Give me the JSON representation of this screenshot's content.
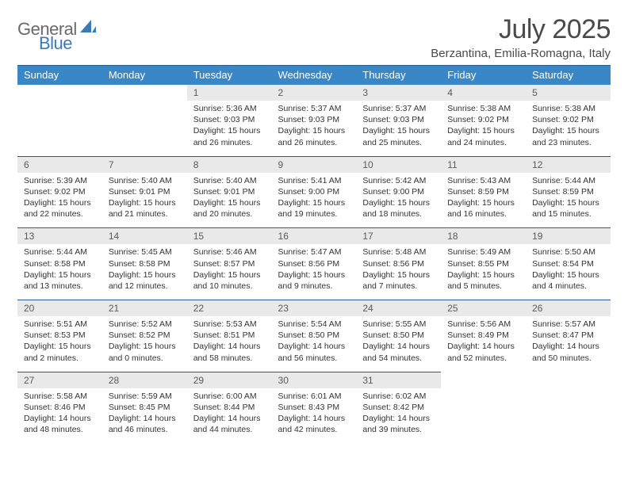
{
  "brand": {
    "text_a": "General",
    "text_b": "Blue"
  },
  "header": {
    "month": "July 2025",
    "location": "Berzantina, Emilia-Romagna, Italy"
  },
  "colors": {
    "header_bg": "#3a87c8",
    "header_fg": "#ffffff",
    "daynum_bg": "#e9e9e9",
    "rule": "#2b5b8c",
    "accent": "#3a7ab8"
  },
  "weekdays": [
    "Sunday",
    "Monday",
    "Tuesday",
    "Wednesday",
    "Thursday",
    "Friday",
    "Saturday"
  ],
  "weeks": [
    {
      "nums": [
        "",
        "",
        "1",
        "2",
        "3",
        "4",
        "5"
      ],
      "cells": [
        null,
        null,
        {
          "sunrise": "Sunrise: 5:36 AM",
          "sunset": "Sunset: 9:03 PM",
          "daylight": "Daylight: 15 hours and 26 minutes."
        },
        {
          "sunrise": "Sunrise: 5:37 AM",
          "sunset": "Sunset: 9:03 PM",
          "daylight": "Daylight: 15 hours and 26 minutes."
        },
        {
          "sunrise": "Sunrise: 5:37 AM",
          "sunset": "Sunset: 9:03 PM",
          "daylight": "Daylight: 15 hours and 25 minutes."
        },
        {
          "sunrise": "Sunrise: 5:38 AM",
          "sunset": "Sunset: 9:02 PM",
          "daylight": "Daylight: 15 hours and 24 minutes."
        },
        {
          "sunrise": "Sunrise: 5:38 AM",
          "sunset": "Sunset: 9:02 PM",
          "daylight": "Daylight: 15 hours and 23 minutes."
        }
      ]
    },
    {
      "nums": [
        "6",
        "7",
        "8",
        "9",
        "10",
        "11",
        "12"
      ],
      "cells": [
        {
          "sunrise": "Sunrise: 5:39 AM",
          "sunset": "Sunset: 9:02 PM",
          "daylight": "Daylight: 15 hours and 22 minutes."
        },
        {
          "sunrise": "Sunrise: 5:40 AM",
          "sunset": "Sunset: 9:01 PM",
          "daylight": "Daylight: 15 hours and 21 minutes."
        },
        {
          "sunrise": "Sunrise: 5:40 AM",
          "sunset": "Sunset: 9:01 PM",
          "daylight": "Daylight: 15 hours and 20 minutes."
        },
        {
          "sunrise": "Sunrise: 5:41 AM",
          "sunset": "Sunset: 9:00 PM",
          "daylight": "Daylight: 15 hours and 19 minutes."
        },
        {
          "sunrise": "Sunrise: 5:42 AM",
          "sunset": "Sunset: 9:00 PM",
          "daylight": "Daylight: 15 hours and 18 minutes."
        },
        {
          "sunrise": "Sunrise: 5:43 AM",
          "sunset": "Sunset: 8:59 PM",
          "daylight": "Daylight: 15 hours and 16 minutes."
        },
        {
          "sunrise": "Sunrise: 5:44 AM",
          "sunset": "Sunset: 8:59 PM",
          "daylight": "Daylight: 15 hours and 15 minutes."
        }
      ]
    },
    {
      "nums": [
        "13",
        "14",
        "15",
        "16",
        "17",
        "18",
        "19"
      ],
      "cells": [
        {
          "sunrise": "Sunrise: 5:44 AM",
          "sunset": "Sunset: 8:58 PM",
          "daylight": "Daylight: 15 hours and 13 minutes."
        },
        {
          "sunrise": "Sunrise: 5:45 AM",
          "sunset": "Sunset: 8:58 PM",
          "daylight": "Daylight: 15 hours and 12 minutes."
        },
        {
          "sunrise": "Sunrise: 5:46 AM",
          "sunset": "Sunset: 8:57 PM",
          "daylight": "Daylight: 15 hours and 10 minutes."
        },
        {
          "sunrise": "Sunrise: 5:47 AM",
          "sunset": "Sunset: 8:56 PM",
          "daylight": "Daylight: 15 hours and 9 minutes."
        },
        {
          "sunrise": "Sunrise: 5:48 AM",
          "sunset": "Sunset: 8:56 PM",
          "daylight": "Daylight: 15 hours and 7 minutes."
        },
        {
          "sunrise": "Sunrise: 5:49 AM",
          "sunset": "Sunset: 8:55 PM",
          "daylight": "Daylight: 15 hours and 5 minutes."
        },
        {
          "sunrise": "Sunrise: 5:50 AM",
          "sunset": "Sunset: 8:54 PM",
          "daylight": "Daylight: 15 hours and 4 minutes."
        }
      ]
    },
    {
      "nums": [
        "20",
        "21",
        "22",
        "23",
        "24",
        "25",
        "26"
      ],
      "cells": [
        {
          "sunrise": "Sunrise: 5:51 AM",
          "sunset": "Sunset: 8:53 PM",
          "daylight": "Daylight: 15 hours and 2 minutes."
        },
        {
          "sunrise": "Sunrise: 5:52 AM",
          "sunset": "Sunset: 8:52 PM",
          "daylight": "Daylight: 15 hours and 0 minutes."
        },
        {
          "sunrise": "Sunrise: 5:53 AM",
          "sunset": "Sunset: 8:51 PM",
          "daylight": "Daylight: 14 hours and 58 minutes."
        },
        {
          "sunrise": "Sunrise: 5:54 AM",
          "sunset": "Sunset: 8:50 PM",
          "daylight": "Daylight: 14 hours and 56 minutes."
        },
        {
          "sunrise": "Sunrise: 5:55 AM",
          "sunset": "Sunset: 8:50 PM",
          "daylight": "Daylight: 14 hours and 54 minutes."
        },
        {
          "sunrise": "Sunrise: 5:56 AM",
          "sunset": "Sunset: 8:49 PM",
          "daylight": "Daylight: 14 hours and 52 minutes."
        },
        {
          "sunrise": "Sunrise: 5:57 AM",
          "sunset": "Sunset: 8:47 PM",
          "daylight": "Daylight: 14 hours and 50 minutes."
        }
      ]
    },
    {
      "nums": [
        "27",
        "28",
        "29",
        "30",
        "31",
        "",
        ""
      ],
      "cells": [
        {
          "sunrise": "Sunrise: 5:58 AM",
          "sunset": "Sunset: 8:46 PM",
          "daylight": "Daylight: 14 hours and 48 minutes."
        },
        {
          "sunrise": "Sunrise: 5:59 AM",
          "sunset": "Sunset: 8:45 PM",
          "daylight": "Daylight: 14 hours and 46 minutes."
        },
        {
          "sunrise": "Sunrise: 6:00 AM",
          "sunset": "Sunset: 8:44 PM",
          "daylight": "Daylight: 14 hours and 44 minutes."
        },
        {
          "sunrise": "Sunrise: 6:01 AM",
          "sunset": "Sunset: 8:43 PM",
          "daylight": "Daylight: 14 hours and 42 minutes."
        },
        {
          "sunrise": "Sunrise: 6:02 AM",
          "sunset": "Sunset: 8:42 PM",
          "daylight": "Daylight: 14 hours and 39 minutes."
        },
        null,
        null
      ]
    }
  ]
}
